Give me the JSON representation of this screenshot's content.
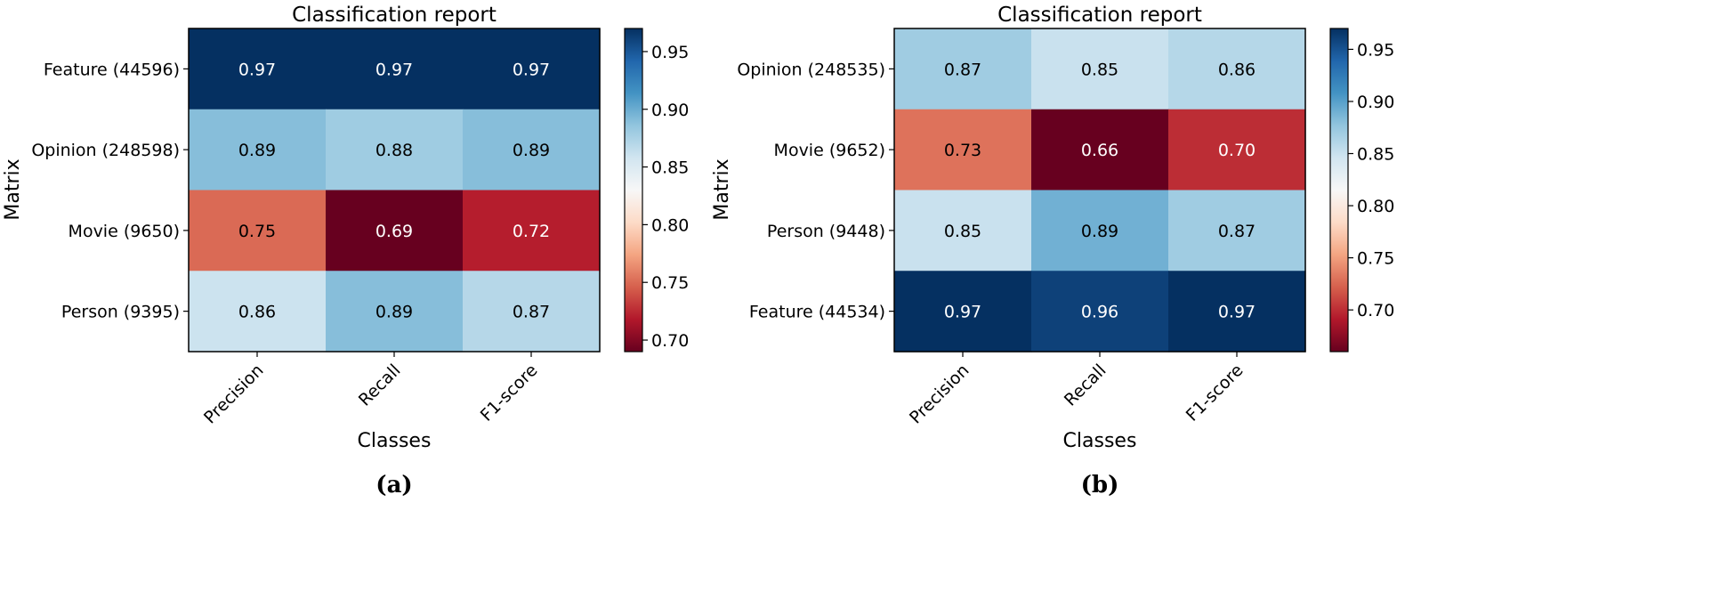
{
  "chart_data": [
    {
      "type": "heatmap",
      "title": "Classification report",
      "xlabel": "Classes",
      "ylabel": "Matrix",
      "panel_label": "(a)",
      "x_categories": [
        "Precision",
        "Recall",
        "F1-score"
      ],
      "y_categories": [
        "Feature (44596)",
        "Opinion (248598)",
        "Movie (9650)",
        "Person (9395)"
      ],
      "values": [
        [
          0.97,
          0.97,
          0.97
        ],
        [
          0.89,
          0.88,
          0.89
        ],
        [
          0.75,
          0.69,
          0.72
        ],
        [
          0.86,
          0.89,
          0.87
        ]
      ],
      "cell_labels": [
        [
          "0.97",
          "0.97",
          "0.97"
        ],
        [
          "0.89",
          "0.88",
          "0.89"
        ],
        [
          "0.75",
          "0.69",
          "0.72"
        ],
        [
          "0.86",
          "0.89",
          "0.87"
        ]
      ],
      "colormap": "RdBu",
      "color_range": [
        0.69,
        0.97
      ],
      "colorbar_ticks": [
        0.95,
        0.9,
        0.85,
        0.8,
        0.75,
        0.7
      ],
      "colorbar_tick_labels": [
        "0.95",
        "0.90",
        "0.85",
        "0.80",
        "0.75",
        "0.70"
      ]
    },
    {
      "type": "heatmap",
      "title": "Classification report",
      "xlabel": "Classes",
      "ylabel": "Matrix",
      "panel_label": "(b)",
      "x_categories": [
        "Precision",
        "Recall",
        "F1-score"
      ],
      "y_categories": [
        "Opinion (248535)",
        "Movie (9652)",
        "Person (9448)",
        "Feature (44534)"
      ],
      "values": [
        [
          0.87,
          0.85,
          0.86
        ],
        [
          0.73,
          0.66,
          0.7
        ],
        [
          0.85,
          0.89,
          0.87
        ],
        [
          0.97,
          0.96,
          0.97
        ]
      ],
      "cell_labels": [
        [
          "0.87",
          "0.85",
          "0.86"
        ],
        [
          "0.73",
          "0.66",
          "0.70"
        ],
        [
          "0.85",
          "0.89",
          "0.87"
        ],
        [
          "0.97",
          "0.96",
          "0.97"
        ]
      ],
      "colormap": "RdBu",
      "color_range": [
        0.66,
        0.97
      ],
      "colorbar_ticks": [
        0.95,
        0.9,
        0.85,
        0.8,
        0.75,
        0.7
      ],
      "colorbar_tick_labels": [
        "0.95",
        "0.90",
        "0.85",
        "0.80",
        "0.75",
        "0.70"
      ]
    }
  ]
}
